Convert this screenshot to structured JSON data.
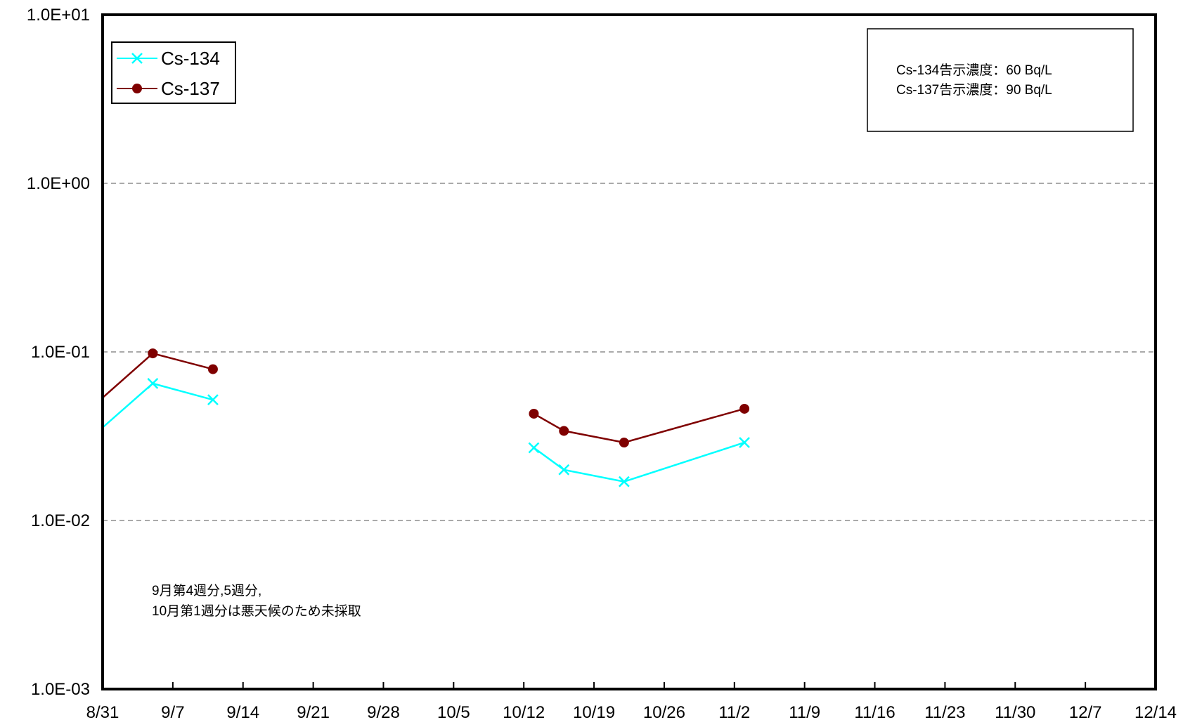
{
  "chart_data": {
    "type": "line",
    "title": "",
    "xlabel": "",
    "ylabel": "",
    "y_scale": "log",
    "ylim": [
      0.001,
      10
    ],
    "y_tick_labels": [
      "1.0E+01",
      "1.0E+00",
      "1.0E-01",
      "1.0E-02",
      "1.0E-03"
    ],
    "x_tick_labels": [
      "8/31",
      "9/7",
      "9/14",
      "9/21",
      "9/28",
      "10/5",
      "10/12",
      "10/19",
      "10/26",
      "11/2",
      "11/9",
      "11/16",
      "11/23",
      "11/30",
      "12/7",
      "12/14"
    ],
    "grid": "horizontal dashed at decades",
    "legend_position": "top-left",
    "series": [
      {
        "name": "Cs-134",
        "color": "#00ffff",
        "marker": "x",
        "segments": [
          [
            {
              "date": "8/29",
              "value": 0.028
            },
            {
              "date": "9/5",
              "value": 0.065
            },
            {
              "date": "9/11",
              "value": 0.052
            }
          ],
          [
            {
              "date": "10/13",
              "value": 0.027
            },
            {
              "date": "10/16",
              "value": 0.02
            },
            {
              "date": "10/22",
              "value": 0.017
            },
            {
              "date": "11/3",
              "value": 0.029
            }
          ]
        ]
      },
      {
        "name": "Cs-137",
        "color": "#7f0000",
        "marker": "circle",
        "segments": [
          [
            {
              "date": "8/29",
              "value": 0.042
            },
            {
              "date": "9/5",
              "value": 0.098
            },
            {
              "date": "9/11",
              "value": 0.079
            }
          ],
          [
            {
              "date": "10/13",
              "value": 0.043
            },
            {
              "date": "10/16",
              "value": 0.034
            },
            {
              "date": "10/22",
              "value": 0.029
            },
            {
              "date": "11/3",
              "value": 0.046
            }
          ]
        ]
      }
    ],
    "limits_box": [
      "Cs-134告示濃度：60 Bq/L",
      "Cs-137告示濃度：90 Bq/L"
    ],
    "note": [
      "9月第4週分,5週分,",
      "10月第1週分は悪天候のため未採取"
    ]
  }
}
